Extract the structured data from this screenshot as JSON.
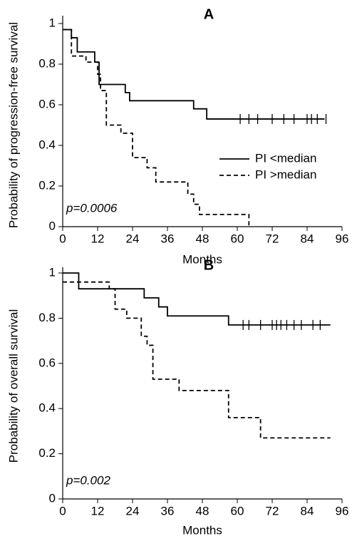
{
  "chart_data": [
    {
      "type": "line",
      "title": "A",
      "color": "#c2185b",
      "x_label": "Months",
      "y_label": "Probability of progression-free survival",
      "annotation": "p=0.0006",
      "xlim": [
        0,
        96
      ],
      "xticks": [
        0,
        12,
        24,
        36,
        48,
        60,
        72,
        84,
        96
      ],
      "ylim": [
        0,
        1
      ],
      "yticks": [
        0,
        0.2,
        0.4,
        0.6,
        0.8,
        1
      ],
      "legend": "right",
      "series": [
        {
          "name": "PI <median",
          "style": "solid",
          "color": "#000000",
          "x": [
            0,
            3,
            5,
            11,
            12.5,
            21.5,
            23,
            45,
            49.5,
            90
          ],
          "values": [
            0.97,
            0.93,
            0.86,
            0.81,
            0.7,
            0.66,
            0.62,
            0.58,
            0.53,
            0.53
          ],
          "censored": [
            61,
            64,
            67,
            72,
            76,
            79.5,
            84,
            85.5,
            87.5,
            90.5
          ]
        },
        {
          "name": "PI >median",
          "style": "dashed",
          "color": "#000000",
          "x": [
            0,
            3,
            8,
            12,
            13,
            15,
            20,
            24,
            29,
            32,
            43,
            45,
            47,
            64
          ],
          "values": [
            0.97,
            0.84,
            0.81,
            0.75,
            0.67,
            0.5,
            0.46,
            0.34,
            0.29,
            0.22,
            0.16,
            0.11,
            0.06,
            0
          ],
          "censored": []
        }
      ]
    },
    {
      "type": "line",
      "title": "B",
      "color": "#c2185b",
      "x_label": "Months",
      "y_label": "Probability of overall survival",
      "annotation": "p=0.002",
      "xlim": [
        0,
        96
      ],
      "xticks": [
        0,
        12,
        24,
        36,
        48,
        60,
        72,
        84,
        96
      ],
      "ylim": [
        0,
        1
      ],
      "yticks": [
        0,
        0.2,
        0.4,
        0.6,
        0.8,
        1
      ],
      "series": [
        {
          "style": "solid",
          "color": "#000000",
          "x": [
            0,
            5.5,
            28,
            33,
            36,
            57,
            92
          ],
          "values": [
            1,
            0.93,
            0.89,
            0.85,
            0.81,
            0.77,
            0.77
          ],
          "censored": [
            62,
            64,
            68,
            72,
            73.5,
            75,
            77,
            79.5,
            82,
            86,
            88.5
          ]
        },
        {
          "style": "dashed",
          "color": "#000000",
          "x": [
            0,
            16,
            18,
            22,
            27,
            29,
            31,
            40,
            57,
            68,
            92
          ],
          "values": [
            0.96,
            0.93,
            0.84,
            0.8,
            0.72,
            0.68,
            0.53,
            0.48,
            0.36,
            0.27,
            0.27
          ],
          "censored": []
        }
      ]
    }
  ]
}
